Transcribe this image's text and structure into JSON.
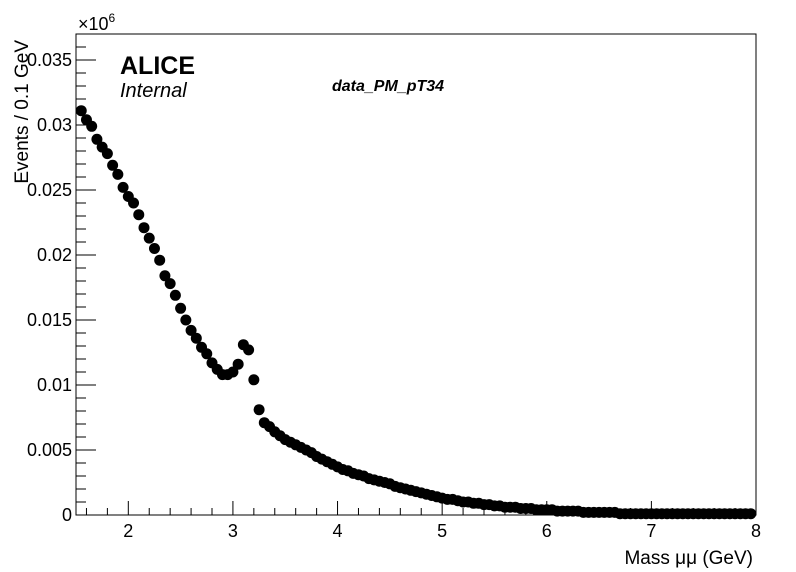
{
  "chart_data": {
    "type": "scatter",
    "title": "data_PM_pT34",
    "annotations": {
      "experiment": "ALICE",
      "status": "Internal"
    },
    "xlabel": "Mass μμ (GeV)",
    "ylabel": "Events / 0.1 GeV",
    "y_multiplier_label": "×10",
    "y_multiplier_exponent": "6",
    "xlim": [
      1.5,
      8.0
    ],
    "ylim": [
      0,
      0.037
    ],
    "x_ticks": [
      2,
      3,
      4,
      5,
      6,
      7,
      8
    ],
    "x_tick_labels": [
      "2",
      "3",
      "4",
      "5",
      "6",
      "7",
      "8"
    ],
    "y_ticks": [
      0,
      0.005,
      0.01,
      0.015,
      0.02,
      0.025,
      0.03,
      0.035
    ],
    "y_tick_labels": [
      "0",
      "0.005",
      "0.01",
      "0.015",
      "0.02",
      "0.025",
      "0.03",
      "0.035"
    ],
    "grid": false,
    "legend": "none",
    "marker_color": "#000000",
    "x": [
      1.55,
      1.6,
      1.65,
      1.7,
      1.75,
      1.8,
      1.85,
      1.9,
      1.95,
      2.0,
      2.05,
      2.1,
      2.15,
      2.2,
      2.25,
      2.3,
      2.35,
      2.4,
      2.45,
      2.5,
      2.55,
      2.6,
      2.65,
      2.7,
      2.75,
      2.8,
      2.85,
      2.9,
      2.95,
      3.0,
      3.05,
      3.1,
      3.15,
      3.2,
      3.25,
      3.3,
      3.35,
      3.4,
      3.45,
      3.5,
      3.55,
      3.6,
      3.65,
      3.7,
      3.75,
      3.8,
      3.85,
      3.9,
      3.95,
      4.0,
      4.05,
      4.1,
      4.15,
      4.2,
      4.25,
      4.3,
      4.35,
      4.4,
      4.45,
      4.5,
      4.55,
      4.6,
      4.65,
      4.7,
      4.75,
      4.8,
      4.85,
      4.9,
      4.95,
      5.0,
      5.05,
      5.1,
      5.15,
      5.2,
      5.25,
      5.3,
      5.35,
      5.4,
      5.45,
      5.5,
      5.55,
      5.6,
      5.65,
      5.7,
      5.75,
      5.8,
      5.85,
      5.9,
      5.95,
      6.0,
      6.05,
      6.1,
      6.15,
      6.2,
      6.25,
      6.3,
      6.35,
      6.4,
      6.45,
      6.5,
      6.55,
      6.6,
      6.65,
      6.7,
      6.75,
      6.8,
      6.85,
      6.9,
      6.95,
      7.0,
      7.05,
      7.1,
      7.15,
      7.2,
      7.25,
      7.3,
      7.35,
      7.4,
      7.45,
      7.5,
      7.55,
      7.6,
      7.65,
      7.7,
      7.75,
      7.8,
      7.85,
      7.9,
      7.95
    ],
    "y": [
      0.0311,
      0.0304,
      0.0299,
      0.0289,
      0.0283,
      0.0278,
      0.0269,
      0.0262,
      0.0252,
      0.0245,
      0.024,
      0.0231,
      0.0221,
      0.0213,
      0.0205,
      0.0196,
      0.0184,
      0.0178,
      0.0169,
      0.0159,
      0.015,
      0.0142,
      0.0136,
      0.0129,
      0.0124,
      0.0117,
      0.0112,
      0.0108,
      0.0108,
      0.011,
      0.0116,
      0.0131,
      0.0127,
      0.0104,
      0.0081,
      0.0071,
      0.0068,
      0.0064,
      0.0061,
      0.0058,
      0.0056,
      0.0054,
      0.0052,
      0.005,
      0.0048,
      0.0045,
      0.0043,
      0.0041,
      0.0039,
      0.0037,
      0.0035,
      0.0034,
      0.0032,
      0.0031,
      0.003,
      0.0028,
      0.0027,
      0.0026,
      0.0025,
      0.0024,
      0.0022,
      0.0021,
      0.002,
      0.0019,
      0.0018,
      0.0017,
      0.0016,
      0.0015,
      0.0014,
      0.0013,
      0.0012,
      0.0012,
      0.0011,
      0.001,
      0.001,
      0.0009,
      0.0009,
      0.0008,
      0.0008,
      0.0007,
      0.0007,
      0.0006,
      0.0006,
      0.0006,
      0.0005,
      0.0005,
      0.0005,
      0.0004,
      0.0004,
      0.0004,
      0.0004,
      0.0003,
      0.0003,
      0.0003,
      0.0003,
      0.0003,
      0.0002,
      0.0002,
      0.0002,
      0.0002,
      0.0002,
      0.0002,
      0.0002,
      0.0001,
      0.0001,
      0.0001,
      0.0001,
      0.0001,
      0.0001,
      0.0001,
      0.0001,
      0.0001,
      0.0001,
      0.0001,
      0.0001,
      0.0001,
      0.0001,
      0.0001,
      0.0001,
      0.0001,
      0.0001,
      0.0001,
      0.0001,
      0.0001,
      0.0001,
      0.0001,
      0.0001,
      0.0001,
      0.0001
    ]
  }
}
